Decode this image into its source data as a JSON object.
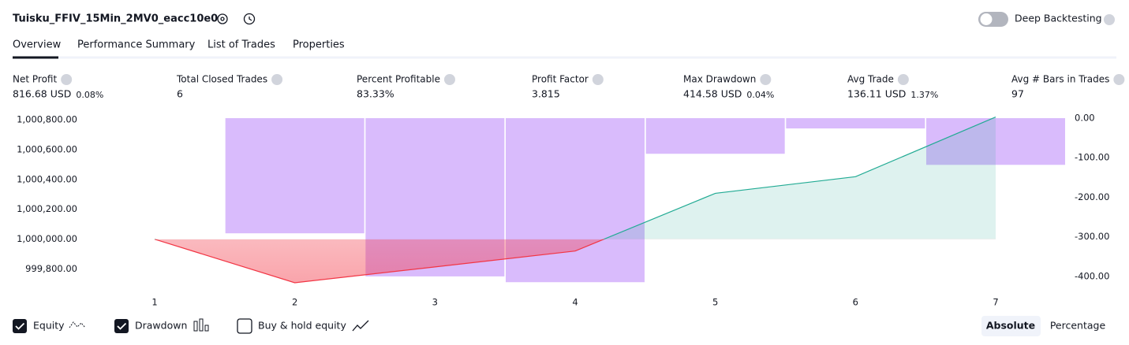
{
  "header": {
    "title": "Tuisku_FFIV_15Min_2MV0_eacc10e0",
    "deep_backtesting": "Deep Backtesting"
  },
  "tabs": [
    "Overview",
    "Performance Summary",
    "List of Trades",
    "Properties"
  ],
  "metrics": [
    {
      "label": "Net Profit",
      "value": "816.68 USD",
      "percent": "0.08%",
      "color": "#089981"
    },
    {
      "label": "Total Closed Trades",
      "value": "6",
      "color": "#131722"
    },
    {
      "label": "Percent Profitable",
      "value": "83.33%",
      "color": "#089981"
    },
    {
      "label": "Profit Factor",
      "value": "3.815",
      "color": "#089981"
    },
    {
      "label": "Max Drawdown",
      "value": "414.58 USD",
      "percent": "0.04%",
      "color": "#f23645"
    },
    {
      "label": "Avg Trade",
      "value": "136.11 USD",
      "percent": "1.37%",
      "color": "#089981"
    },
    {
      "label": "Avg # Bars in Trades",
      "value": "97",
      "color": "#131722"
    }
  ],
  "chart_data": {
    "type": "line",
    "categories": [
      "1",
      "2",
      "3",
      "4",
      "5",
      "6",
      "7"
    ],
    "series": [
      {
        "name": "Equity",
        "type": "line",
        "color": "#22ab94",
        "negative_color": "#f23645",
        "values": [
          1000000,
          999709,
          999815,
          999921,
          1000307,
          1000418,
          1000817
        ]
      },
      {
        "name": "Drawdown",
        "type": "bar",
        "axis": "y2",
        "color": "#d9bbfc",
        "values": [
          0,
          -291,
          -400,
          -414.58,
          -90,
          -26,
          -118
        ]
      }
    ],
    "ylim": [
      999672,
      1000820
    ],
    "yticks": [
      {
        "value": 999800,
        "label": "999,800.00"
      },
      {
        "value": 1000000,
        "label": "1,000,000.00"
      },
      {
        "value": 1000200,
        "label": "1,000,200.00"
      },
      {
        "value": 1000400,
        "label": "1,000,400.00"
      },
      {
        "value": 1000600,
        "label": "1,000,600.00"
      },
      {
        "value": 1000800,
        "label": "1,000,800.00"
      }
    ],
    "y2lim": [
      -430,
      4
    ],
    "y2ticks": [
      {
        "value": 0,
        "label": "0.00"
      },
      {
        "value": -100,
        "label": "-100.00"
      },
      {
        "value": -200,
        "label": "-200.00"
      },
      {
        "value": -300,
        "label": "-300.00"
      },
      {
        "value": -400,
        "label": "-400.00"
      }
    ]
  },
  "footer": {
    "buy_hold": "Buy & hold equity",
    "buttons": [
      "Absolute",
      "Percentage"
    ]
  }
}
